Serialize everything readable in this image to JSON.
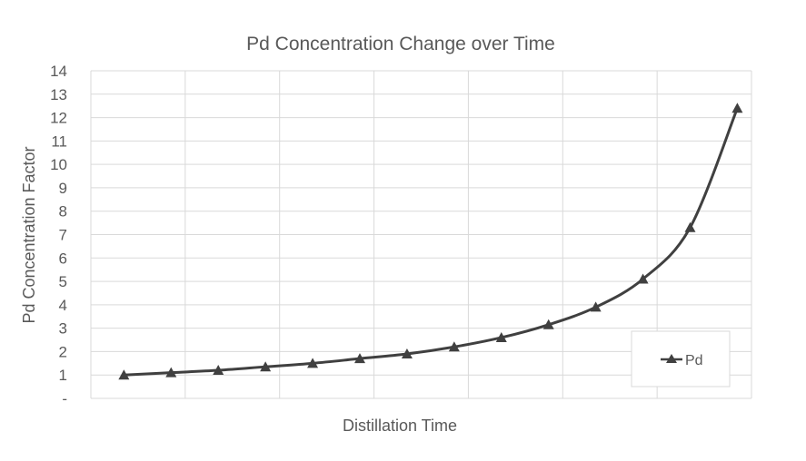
{
  "chart_data": {
    "type": "line",
    "title": "Pd Concentration Change over Time",
    "xlabel": "Distillation Time",
    "ylabel": "Pd Concentration Factor",
    "ylim": [
      0,
      14
    ],
    "y_tick_labels": [
      "-",
      "1",
      "2",
      "3",
      "4",
      "5",
      "6",
      "7",
      "8",
      "9",
      "10",
      "11",
      "12",
      "13",
      "14"
    ],
    "grid": true,
    "smooth": true,
    "marker": "triangle",
    "legend_position": "bottom-right",
    "series": [
      {
        "name": "Pd",
        "color": "#404040",
        "values": [
          1.0,
          1.1,
          1.2,
          1.35,
          1.5,
          1.7,
          1.9,
          2.2,
          2.6,
          3.15,
          3.9,
          5.1,
          7.3,
          12.4
        ]
      }
    ]
  }
}
